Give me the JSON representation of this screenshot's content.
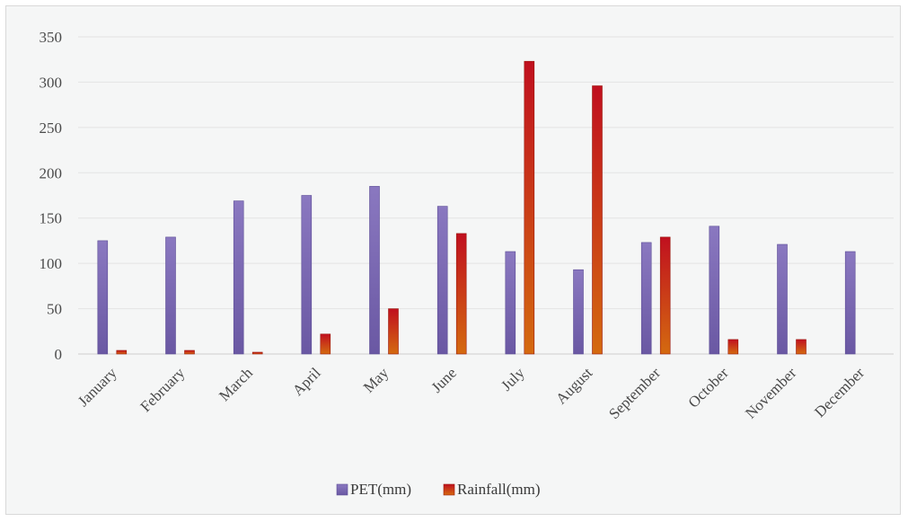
{
  "chart_data": {
    "type": "bar",
    "categories": [
      "January",
      "February",
      "March",
      "April",
      "May",
      "June",
      "July",
      "August",
      "September",
      "October",
      "November",
      "December"
    ],
    "series": [
      {
        "name": "PET(mm)",
        "values": [
          125,
          129,
          169,
          175,
          185,
          163,
          113,
          93,
          123,
          141,
          121,
          113
        ],
        "color": "#7f6bb5"
      },
      {
        "name": "Rainfall(mm)",
        "values": [
          4,
          4,
          2,
          22,
          50,
          133,
          323,
          296,
          129,
          16,
          16,
          0
        ],
        "color": "#c8311a"
      }
    ],
    "ylim": [
      0,
      350
    ],
    "yticks": [
      0,
      50,
      100,
      150,
      200,
      250,
      300,
      350
    ],
    "grid": true,
    "legend_position": "bottom",
    "background": "#f5f6f6"
  }
}
